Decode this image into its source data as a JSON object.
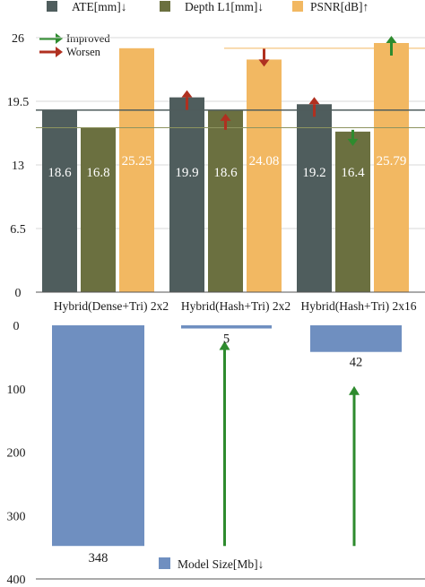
{
  "chart_data": [
    {
      "type": "bar",
      "categories": [
        "Hybrid(Dense+Tri) 2x2",
        "Hybrid(Hash+Tri) 2x2",
        "Hybrid(Hash+Tri) 2x16"
      ],
      "series": [
        {
          "name": "ATE[mm]↓",
          "values": [
            18.6,
            19.9,
            19.2
          ],
          "color": "#4f5d5d"
        },
        {
          "name": "Depth L1[mm]↓",
          "values": [
            16.8,
            18.6,
            16.4
          ],
          "color": "#6b7040"
        },
        {
          "name": "PSNR[dB]↑",
          "values": [
            25.25,
            24.08,
            25.79
          ],
          "color": "#f2b862"
        }
      ],
      "y_ticks": [
        "0",
        "6.5",
        "13",
        "19.5",
        "26"
      ],
      "ylim": [
        0,
        26
      ],
      "psnr_axis_note": "PSNR bars plotted on a separate upward-scaled axis (value labels printed inside bars)",
      "reference_lines": {
        "ate": 18.6,
        "depth": 16.8,
        "psnr": 25.25
      },
      "annotations": [
        {
          "category": 1,
          "series": "ATE[mm]↓",
          "status": "worsen"
        },
        {
          "category": 1,
          "series": "Depth L1[mm]↓",
          "status": "worsen"
        },
        {
          "category": 1,
          "series": "PSNR[dB]↑",
          "status": "worsen"
        },
        {
          "category": 2,
          "series": "ATE[mm]↓",
          "status": "worsen"
        },
        {
          "category": 2,
          "series": "Depth L1[mm]↓",
          "status": "improved"
        },
        {
          "category": 2,
          "series": "PSNR[dB]↑",
          "status": "improved"
        }
      ],
      "arrow_legend": [
        {
          "label": "Improved",
          "color": "#2e8b2e"
        },
        {
          "label": "Worsen",
          "color": "#b03020"
        }
      ],
      "legend_placement": "top"
    },
    {
      "type": "bar",
      "orientation": "inverted",
      "categories": [
        "Hybrid(Dense+Tri) 2x2",
        "Hybrid(Hash+Tri) 2x2",
        "Hybrid(Hash+Tri) 2x16"
      ],
      "series": [
        {
          "name": "Model Size[Mb]↓",
          "values": [
            348,
            5,
            42
          ],
          "color": "#6f8fc0"
        }
      ],
      "value_labels": [
        "348",
        "5",
        "42"
      ],
      "y_ticks": [
        "0",
        "100",
        "200",
        "300",
        "400"
      ],
      "ylim": [
        0,
        400
      ],
      "improvement_arrows": [
        {
          "category": 1,
          "status": "improved"
        },
        {
          "category": 2,
          "status": "improved"
        }
      ],
      "legend_placement": "bottom-center"
    }
  ],
  "colors": {
    "ate": "#4f5d5d",
    "depth": "#6b7040",
    "psnr": "#f2b862",
    "size": "#6f8fc0",
    "improved": "#2e8b2e",
    "worsen": "#b03020"
  }
}
